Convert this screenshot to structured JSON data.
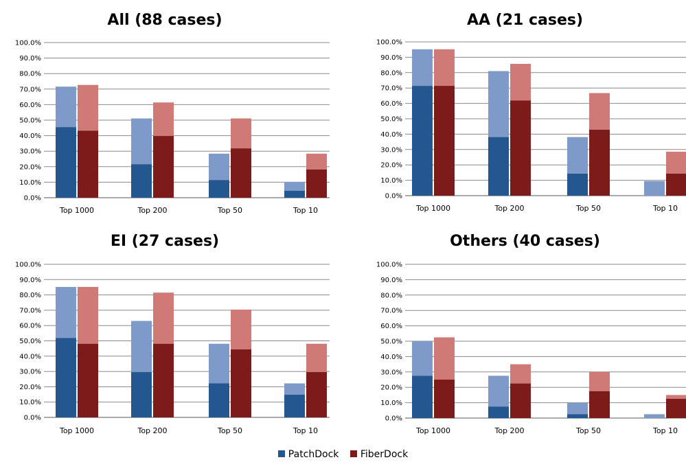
{
  "colors": {
    "patchdock_dark": "#24568F",
    "patchdock_light": "#7D9AC8",
    "fiberdock_dark": "#7D1A1A",
    "fiberdock_light": "#CF7A77",
    "grid": "#888888"
  },
  "legend": [
    {
      "label": "PatchDock",
      "color": "#24568F"
    },
    {
      "label": "FiberDock",
      "color": "#7D1A1A"
    }
  ],
  "chart_data": [
    {
      "type": "bar",
      "title": "All (88 cases)",
      "categories": [
        "Top 1000",
        "Top 200",
        "Top 50",
        "Top 10"
      ],
      "ylim": [
        0,
        100
      ],
      "yticks": [
        "0.0%",
        "10.0%",
        "20.0%",
        "30.0%",
        "40.0%",
        "50.0%",
        "60.0%",
        "70.0%",
        "80.0%",
        "90.0%",
        "100.0%"
      ],
      "grid": true,
      "series": [
        {
          "name": "PatchDock",
          "values": [
            45.5,
            21.6,
            11.4,
            4.5
          ],
          "total": [
            71.6,
            51.1,
            28.4,
            10.2
          ]
        },
        {
          "name": "FiberDock",
          "values": [
            43.2,
            39.8,
            31.8,
            18.2
          ],
          "total": [
            72.7,
            61.4,
            51.1,
            28.4
          ]
        }
      ]
    },
    {
      "type": "bar",
      "title": "AA (21 cases)",
      "categories": [
        "Top 1000",
        "Top 200",
        "Top 50",
        "Top 10"
      ],
      "ylim": [
        0,
        100
      ],
      "yticks": [
        "0.0%",
        "10.0%",
        "20.0%",
        "30.0%",
        "40.0%",
        "50.0%",
        "60.0%",
        "70.0%",
        "80.0%",
        "90.0%",
        "100.0%"
      ],
      "grid": true,
      "series": [
        {
          "name": "PatchDock",
          "values": [
            71.4,
            38.1,
            14.3,
            0.0
          ],
          "total": [
            95.2,
            81.0,
            38.1,
            9.5
          ]
        },
        {
          "name": "FiberDock",
          "values": [
            71.4,
            61.9,
            42.9,
            14.3
          ],
          "total": [
            95.2,
            85.7,
            66.7,
            28.6
          ]
        }
      ]
    },
    {
      "type": "bar",
      "title": "EI (27 cases)",
      "categories": [
        "Top 1000",
        "Top 200",
        "Top 50",
        "Top 10"
      ],
      "ylim": [
        0,
        100
      ],
      "yticks": [
        "0.0%",
        "10.0%",
        "20.0%",
        "30.0%",
        "40.0%",
        "50.0%",
        "60.0%",
        "70.0%",
        "80.0%",
        "90.0%",
        "100.0%"
      ],
      "grid": true,
      "series": [
        {
          "name": "PatchDock",
          "values": [
            51.9,
            29.6,
            22.2,
            14.8
          ],
          "total": [
            85.2,
            63.0,
            48.1,
            22.2
          ]
        },
        {
          "name": "FiberDock",
          "values": [
            48.1,
            48.1,
            44.4,
            29.6
          ],
          "total": [
            85.2,
            81.5,
            70.4,
            48.1
          ]
        }
      ]
    },
    {
      "type": "bar",
      "title": "Others (40 cases)",
      "categories": [
        "Top 1000",
        "Top 200",
        "Top 50",
        "Top 10"
      ],
      "ylim": [
        0,
        100
      ],
      "yticks": [
        "0.0%",
        "10.0%",
        "20.0%",
        "30.0%",
        "40.0%",
        "50.0%",
        "60.0%",
        "70.0%",
        "80.0%",
        "90.0%",
        "100.0%"
      ],
      "grid": true,
      "series": [
        {
          "name": "PatchDock",
          "values": [
            27.5,
            7.5,
            2.5,
            0.0
          ],
          "total": [
            50.0,
            27.5,
            10.0,
            2.5
          ]
        },
        {
          "name": "FiberDock",
          "values": [
            25.0,
            22.5,
            17.5,
            12.5
          ],
          "total": [
            52.5,
            35.0,
            30.0,
            15.0
          ]
        }
      ]
    }
  ]
}
